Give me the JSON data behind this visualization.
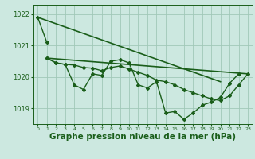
{
  "background_color": "#cce8e0",
  "grid_color": "#a0c8b8",
  "line_color": "#1a5e1a",
  "marker_color": "#1a5e1a",
  "xlabel": "Graphe pression niveau de la mer (hPa)",
  "xlabel_fontsize": 7.5,
  "xlim": [
    -0.5,
    23.5
  ],
  "ylim": [
    1018.5,
    1022.3
  ],
  "yticks": [
    1019,
    1020,
    1021,
    1022
  ],
  "xticks": [
    0,
    1,
    2,
    3,
    4,
    5,
    6,
    7,
    8,
    9,
    10,
    11,
    12,
    13,
    14,
    15,
    16,
    17,
    18,
    19,
    20,
    21,
    22,
    23
  ],
  "series": [
    {
      "x": [
        0,
        1
      ],
      "y": [
        1021.9,
        1021.1
      ],
      "marker": "D",
      "markersize": 2.0,
      "linewidth": 1.0
    },
    {
      "x": [
        1,
        2,
        3,
        4,
        5,
        6,
        7,
        8,
        9,
        10,
        11,
        12,
        13,
        14,
        15,
        16,
        17,
        18,
        19,
        20,
        21,
        22,
        23
      ],
      "y": [
        1020.6,
        1020.45,
        1020.4,
        1019.75,
        1019.6,
        1020.1,
        1020.05,
        1020.5,
        1020.55,
        1020.45,
        1019.75,
        1019.65,
        1019.85,
        1018.85,
        1018.9,
        1018.65,
        1018.85,
        1019.1,
        1019.2,
        1019.35,
        1019.8,
        1020.1,
        null
      ],
      "marker": "D",
      "markersize": 2.0,
      "linewidth": 1.0
    },
    {
      "x": [
        1,
        2,
        3,
        4,
        5,
        6,
        7,
        8,
        9,
        10,
        11,
        12,
        13,
        14,
        15,
        16,
        17,
        18,
        19,
        20,
        21,
        22,
        23
      ],
      "y": [
        1020.6,
        1020.45,
        1020.4,
        1020.38,
        1020.3,
        1020.28,
        1020.2,
        1020.3,
        1020.35,
        1020.25,
        1020.15,
        1020.05,
        1019.9,
        1019.85,
        1019.75,
        1019.6,
        1019.5,
        1019.4,
        1019.3,
        1019.25,
        1019.4,
        1019.75,
        1020.1
      ],
      "marker": "D",
      "markersize": 2.0,
      "linewidth": 1.0
    },
    {
      "x": [
        0,
        20
      ],
      "y": [
        1021.9,
        1019.85
      ],
      "marker": null,
      "markersize": 0,
      "linewidth": 1.2
    },
    {
      "x": [
        1,
        23
      ],
      "y": [
        1020.6,
        1020.1
      ],
      "marker": null,
      "markersize": 0,
      "linewidth": 1.2
    }
  ]
}
